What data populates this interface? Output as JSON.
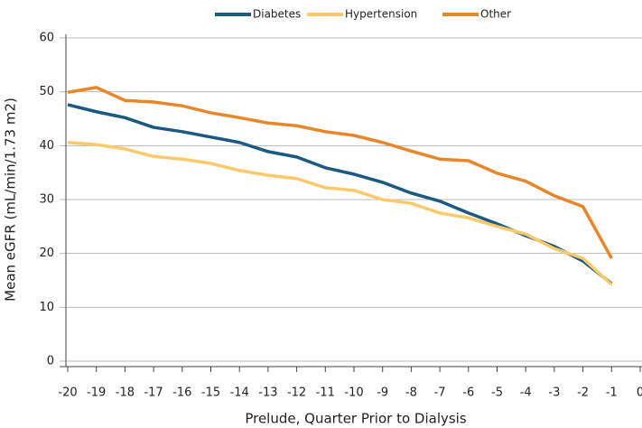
{
  "chart_data": {
    "type": "line",
    "x_label": "Prelude, Quarter Prior to Dialysis",
    "y_label": "Mean eGFR (mL/min/1.73 m2)",
    "x": [
      -20,
      -19,
      -18,
      -17,
      -16,
      -15,
      -14,
      -13,
      -12,
      -11,
      -10,
      -9,
      -8,
      -7,
      -6,
      -5,
      -4,
      -3,
      -2,
      -1
    ],
    "series": [
      {
        "name": "Diabetes",
        "color": "#1a5a80",
        "values": [
          47.6,
          46.3,
          45.2,
          43.4,
          42.6,
          41.6,
          40.6,
          38.9,
          37.9,
          35.9,
          34.7,
          33.2,
          31.2,
          29.7,
          27.5,
          25.5,
          23.3,
          21.3,
          18.6,
          14.4
        ]
      },
      {
        "name": "Hypertension",
        "color": "#fcc96b",
        "values": [
          40.6,
          40.2,
          39.4,
          38.0,
          37.5,
          36.7,
          35.4,
          34.5,
          33.9,
          32.2,
          31.7,
          30.0,
          29.3,
          27.5,
          26.6,
          25.0,
          23.6,
          20.9,
          19.1,
          14.2
        ]
      },
      {
        "name": "Other",
        "color": "#e8862a",
        "values": [
          49.9,
          50.8,
          48.4,
          48.1,
          47.4,
          46.1,
          45.2,
          44.2,
          43.7,
          42.6,
          41.9,
          40.6,
          39.0,
          37.5,
          37.2,
          34.9,
          33.4,
          30.7,
          28.7,
          19.1
        ]
      }
    ],
    "xlim": [
      -20,
      0
    ],
    "xticks": [
      -20,
      -19,
      -18,
      -17,
      -16,
      -15,
      -14,
      -13,
      -12,
      -11,
      -10,
      -9,
      -8,
      -7,
      -6,
      -5,
      -4,
      -3,
      -2,
      -1,
      0
    ],
    "ylim": [
      0,
      60
    ],
    "yticks": [
      0,
      10,
      20,
      30,
      40,
      50,
      60
    ],
    "grid": true,
    "legend": "top"
  }
}
